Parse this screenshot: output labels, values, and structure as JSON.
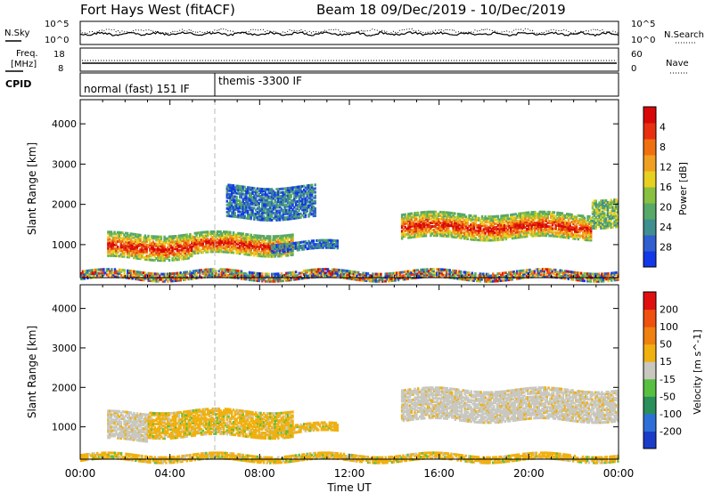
{
  "header": {
    "station": "Fort Hays West (fitACF)",
    "beam_info": "Beam 18  09/Dec/2019 - 10/Dec/2019"
  },
  "noise_panel": {
    "left_label": "N.Sky",
    "left_ticks": [
      "10^5",
      "10^0"
    ],
    "right_label": "N.Search",
    "right_ticks": [
      "10^5",
      "10^0"
    ]
  },
  "freq_panel": {
    "left_label_1": "Freq.",
    "left_label_2": "[MHz]",
    "left_ticks": [
      "18",
      "8"
    ],
    "right_label": "Nave",
    "right_ticks": [
      "60",
      "0"
    ]
  },
  "cpid_panel": {
    "label": "CPID",
    "segments": [
      {
        "start_hour": 0,
        "text": "normal (fast) 151 IF"
      },
      {
        "start_hour": 6,
        "text": "themis -3300 IF"
      }
    ]
  },
  "chart_data": [
    {
      "type": "heatmap",
      "name": "power",
      "ylabel": "Slant Range [km]",
      "y_ticks": [
        "1000",
        "2000",
        "3000",
        "4000"
      ],
      "ylim": [
        180,
        4600
      ],
      "xlim_hours": [
        0,
        24
      ],
      "colorbar": {
        "label": "Power [dB]",
        "ticks": [
          "4",
          "8",
          "12",
          "16",
          "20",
          "24",
          "28"
        ],
        "colors": [
          "#1238e8",
          "#2f5fd0",
          "#3f8f8f",
          "#58a868",
          "#88c040",
          "#e8d020",
          "#f0a020",
          "#f07010",
          "#e83010",
          "#d80808"
        ]
      },
      "regions": [
        {
          "t0": 1.2,
          "t1": 5.0,
          "r0": 700,
          "r1": 1300,
          "level": "high"
        },
        {
          "t0": 5.0,
          "t1": 9.5,
          "r0": 800,
          "r1": 1300,
          "level": "high"
        },
        {
          "t0": 8.5,
          "t1": 11.5,
          "r0": 900,
          "r1": 1100,
          "level": "low"
        },
        {
          "t0": 6.5,
          "t1": 10.5,
          "r0": 1700,
          "r1": 2500,
          "level": "low"
        },
        {
          "t0": 14.3,
          "t1": 22.8,
          "r0": 1200,
          "r1": 1800,
          "level": "high"
        },
        {
          "t0": 22.8,
          "t1": 24.0,
          "r0": 1500,
          "r1": 2200,
          "level": "mid"
        },
        {
          "t0": 0.0,
          "t1": 24.0,
          "r0": 180,
          "r1": 380,
          "level": "mixed"
        }
      ]
    },
    {
      "type": "heatmap",
      "name": "velocity",
      "ylabel": "Slant Range [km]",
      "y_ticks": [
        "1000",
        "2000",
        "3000",
        "4000"
      ],
      "ylim": [
        180,
        4600
      ],
      "xlim_hours": [
        0,
        24
      ],
      "colorbar": {
        "label": "Velocity [m s^-1]",
        "ticks": [
          "200",
          "100",
          "50",
          "15",
          "-15",
          "-50",
          "-100",
          "-200"
        ],
        "colors": [
          "#1a3cc8",
          "#2f70d8",
          "#2a8f5a",
          "#58c040",
          "#c8c8c0",
          "#f0b010",
          "#f08010",
          "#f05010",
          "#e01010"
        ]
      },
      "regions": [
        {
          "t0": 1.2,
          "t1": 3.0,
          "r0": 700,
          "r1": 1400,
          "level": "gray"
        },
        {
          "t0": 3.0,
          "t1": 9.5,
          "r0": 800,
          "r1": 1450,
          "level": "orange"
        },
        {
          "t0": 8.5,
          "t1": 11.5,
          "r0": 900,
          "r1": 1100,
          "level": "orange"
        },
        {
          "t0": 14.3,
          "t1": 24.0,
          "r0": 1200,
          "r1": 2000,
          "level": "gray"
        },
        {
          "t0": 0.0,
          "t1": 24.0,
          "r0": 180,
          "r1": 350,
          "level": "orange"
        }
      ]
    }
  ],
  "x_axis": {
    "ticks": [
      "00:00",
      "04:00",
      "08:00",
      "12:00",
      "16:00",
      "20:00",
      "00:00"
    ],
    "label": "Time UT"
  }
}
